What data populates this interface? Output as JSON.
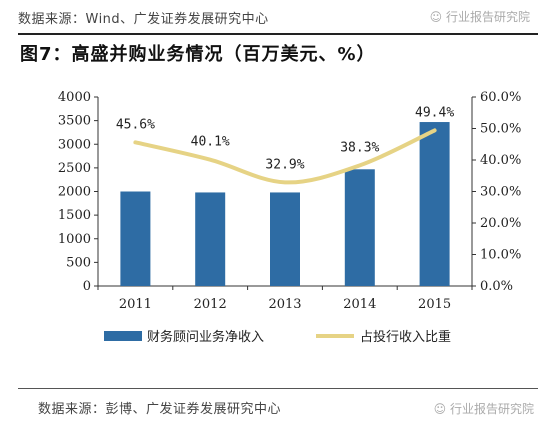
{
  "header": {
    "source": "数据来源：Wind、广发证券发展研究中心",
    "watermark": "行业报告研究院",
    "title": "图7：高盛并购业务情况（百万美元、%）"
  },
  "footer": {
    "source": "数据来源：彭博、广发证券发展研究中心",
    "watermark": "行业报告研究院"
  },
  "colors": {
    "bar": "#2E6CA4",
    "line": "#E6D385"
  },
  "chart_data": {
    "type": "bar",
    "categories": [
      "2011",
      "2012",
      "2013",
      "2014",
      "2015"
    ],
    "series": [
      {
        "name": "财务顾问业务净收入",
        "type": "bar",
        "axis": "left",
        "values": [
          2000,
          1980,
          1980,
          2470,
          3470
        ]
      },
      {
        "name": "占投行收入比重",
        "type": "line",
        "axis": "right",
        "values": [
          45.6,
          40.1,
          32.9,
          38.3,
          49.4
        ],
        "labels": [
          "45.6%",
          "40.1%",
          "32.9%",
          "38.3%",
          "49.4%"
        ]
      }
    ],
    "y_left": {
      "lim": [
        0,
        4000
      ],
      "ticks": [
        "0",
        "500",
        "1000",
        "1500",
        "2000",
        "2500",
        "3000",
        "3500",
        "4000"
      ]
    },
    "y_right": {
      "lim": [
        0,
        60
      ],
      "ticks": [
        "0.0%",
        "10.0%",
        "20.0%",
        "30.0%",
        "40.0%",
        "50.0%",
        "60.0%"
      ]
    },
    "title": "图7：高盛并购业务情况（百万美元、%）",
    "grid": false,
    "legend": "bottom"
  }
}
